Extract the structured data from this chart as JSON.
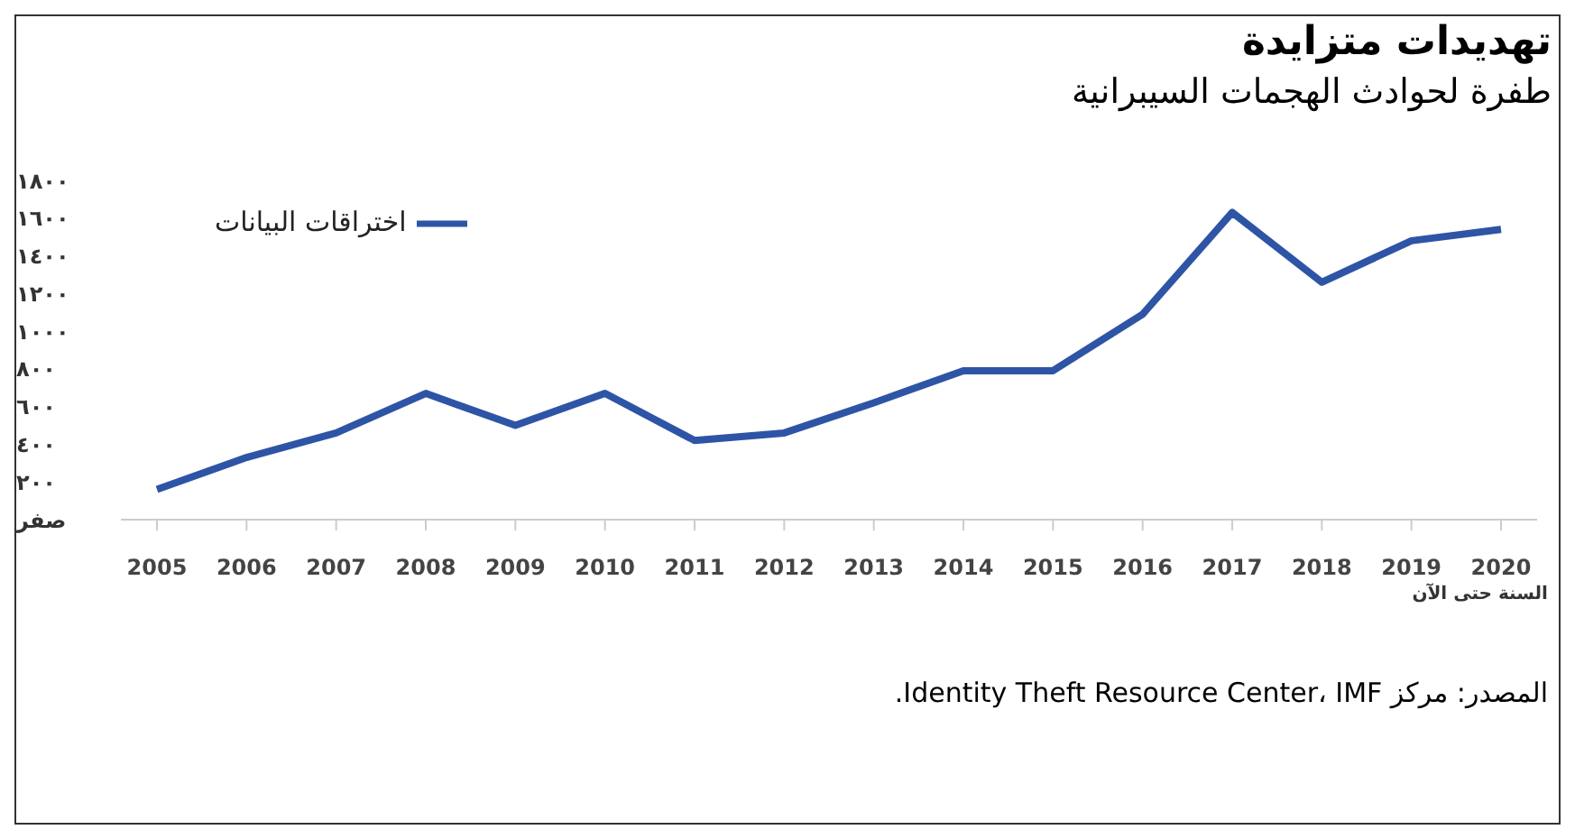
{
  "chart_data": {
    "type": "line",
    "title": "تهديدات متزايدة",
    "subtitle": "طفرة لحوادث الهجمات السيبرانية",
    "xlabel": "السنة حتى الآن",
    "categories": [
      "2005",
      "2006",
      "2007",
      "2008",
      "2009",
      "2010",
      "2011",
      "2012",
      "2013",
      "2014",
      "2015",
      "2016",
      "2017",
      "2018",
      "2019",
      "2020"
    ],
    "series": [
      {
        "name": "اختراقات البيانات",
        "color": "#2e54a6",
        "values": [
          160,
          330,
          460,
          670,
          500,
          670,
          420,
          460,
          620,
          790,
          790,
          1090,
          1630,
          1260,
          1480,
          1540
        ]
      }
    ],
    "ylim": [
      0,
      1800
    ],
    "yticks": [
      {
        "value": 0,
        "label": "صفر"
      },
      {
        "value": 200,
        "label": "٢٠٠"
      },
      {
        "value": 400,
        "label": "٤٠٠"
      },
      {
        "value": 600,
        "label": "٦٠٠"
      },
      {
        "value": 800,
        "label": "٨٠٠"
      },
      {
        "value": 1000,
        "label": "١٠٠٠"
      },
      {
        "value": 1200,
        "label": "١٢٠٠"
      },
      {
        "value": 1400,
        "label": "١٤٠٠"
      },
      {
        "value": 1600,
        "label": "١٦٠٠"
      },
      {
        "value": 1800,
        "label": "١٨٠٠"
      }
    ],
    "grid": false,
    "legend": "top left",
    "marker": "none",
    "line_style": "solid",
    "annotations": [
      "المصدر: مركز Identity Theft Resource Center، IMF."
    ]
  }
}
